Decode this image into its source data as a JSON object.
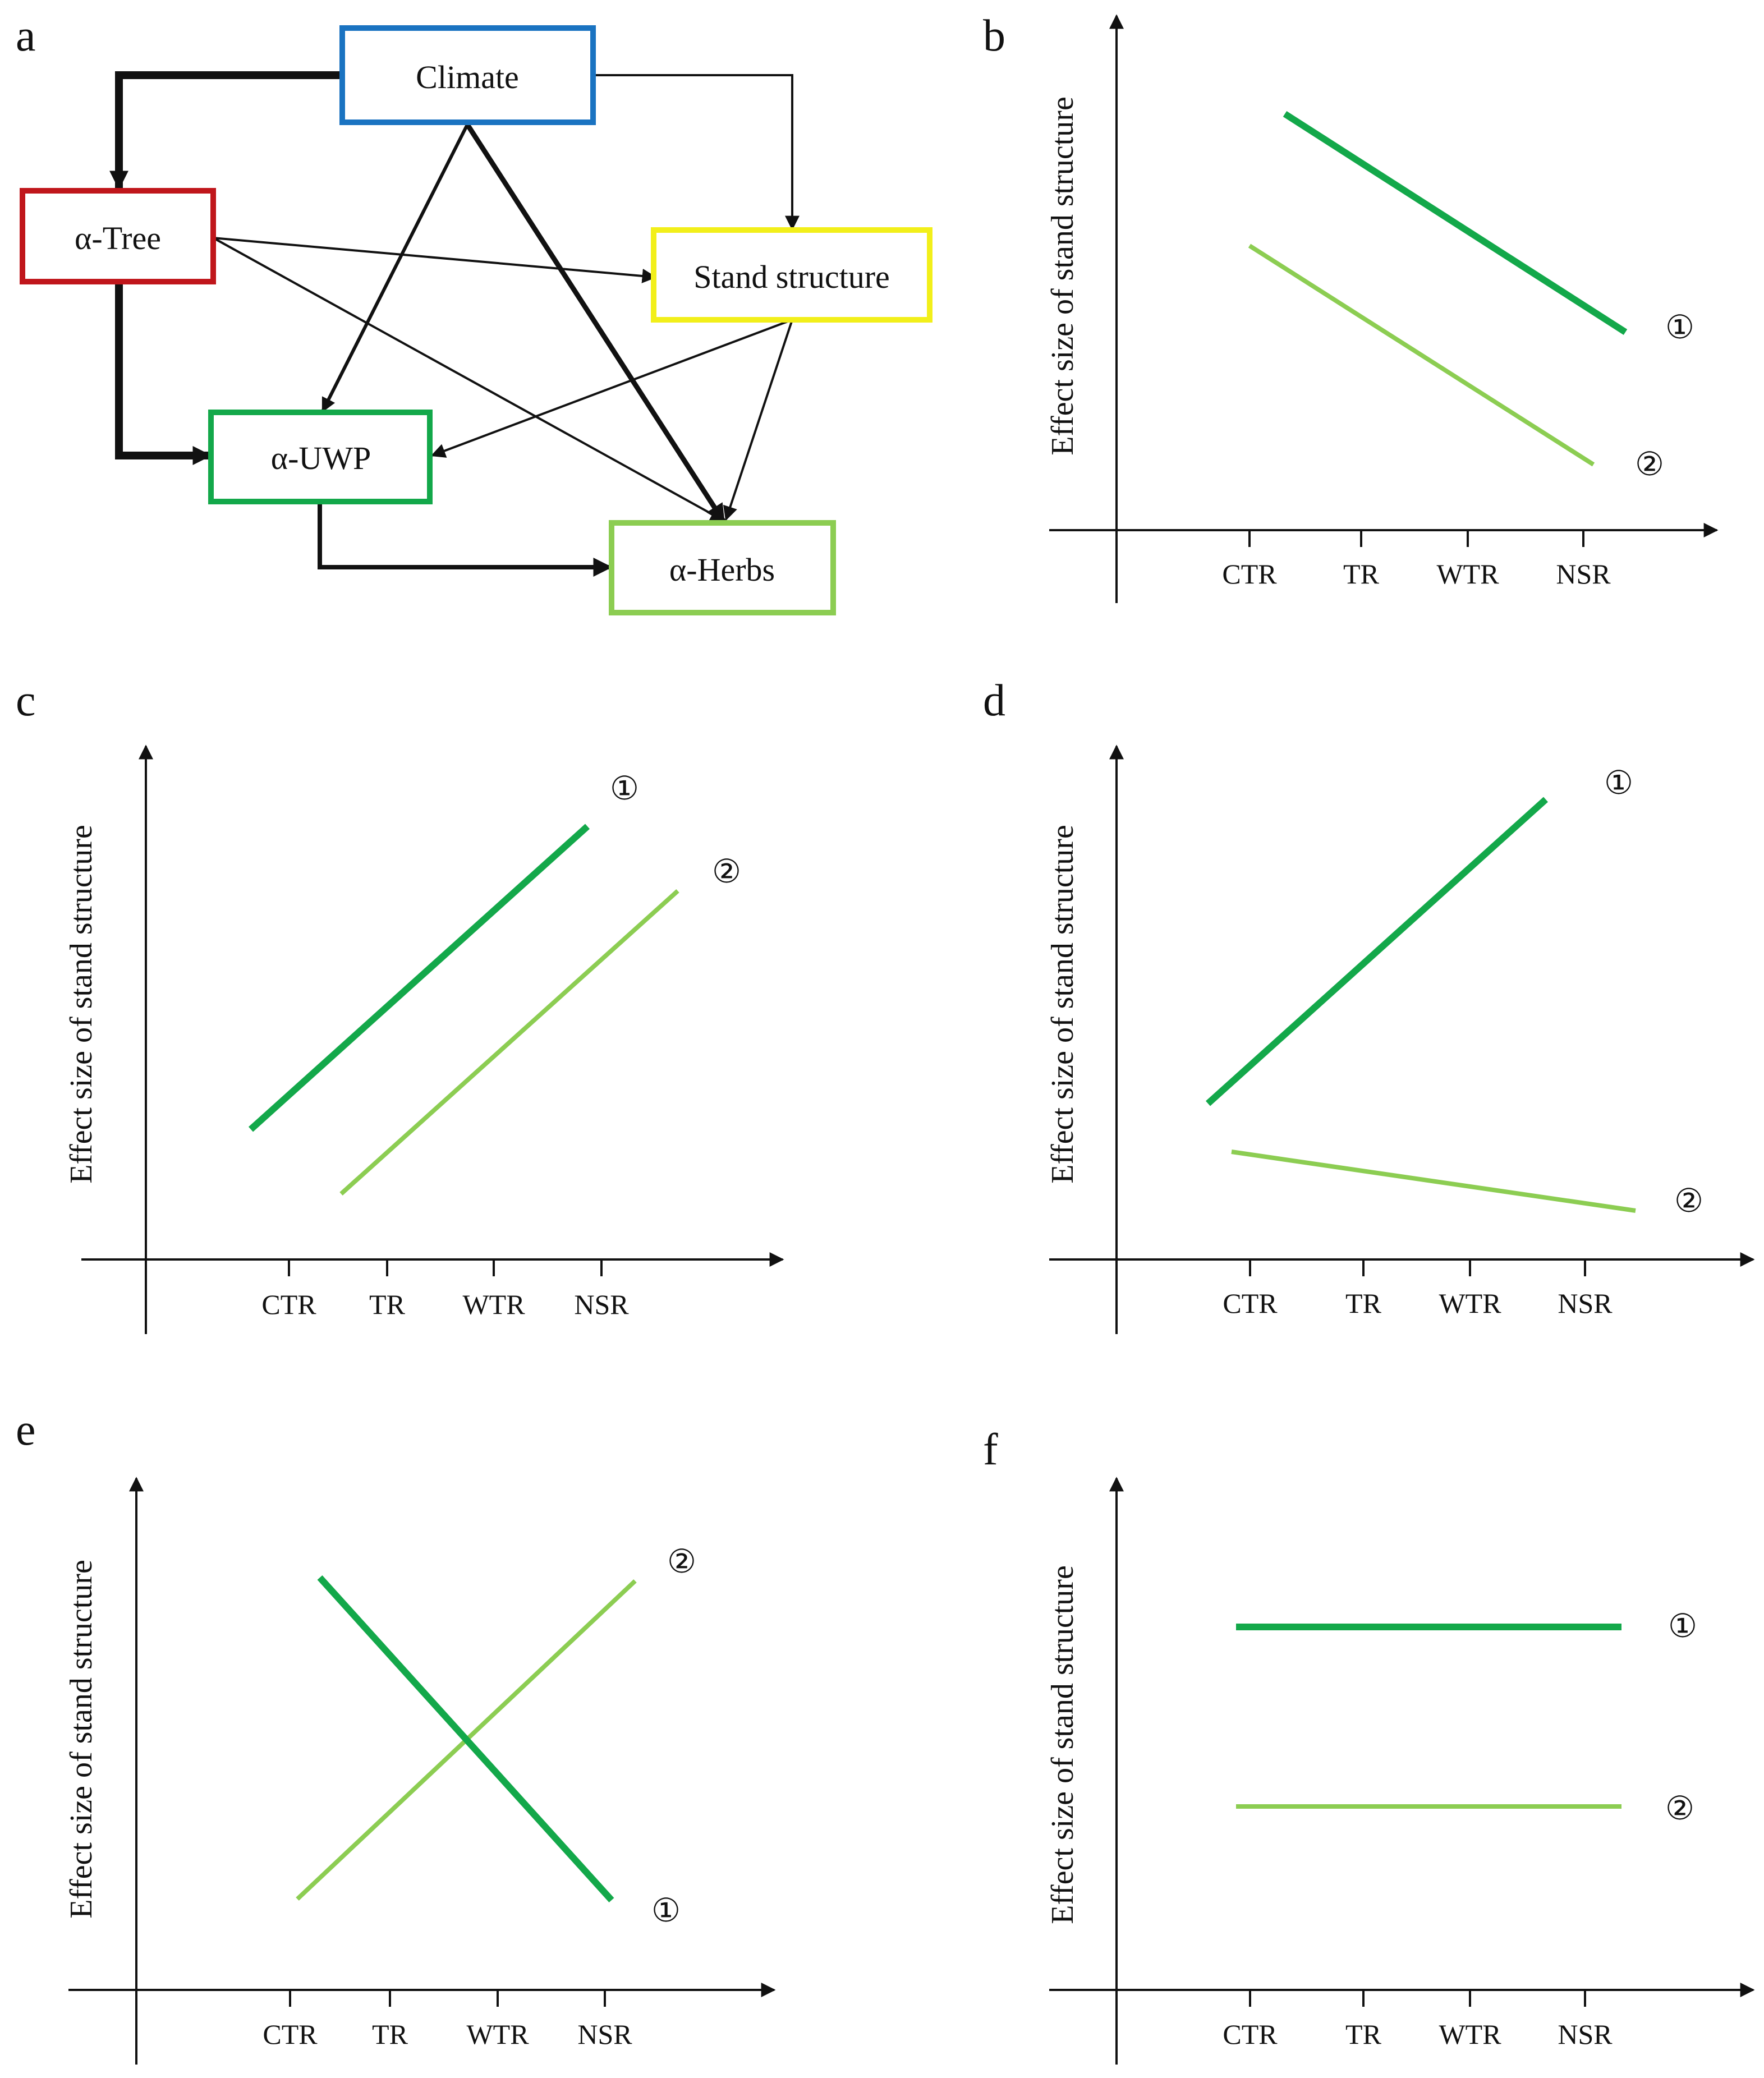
{
  "colors": {
    "climate": "#1a73c1",
    "tree": "#c0161b",
    "stand": "#f2ef1a",
    "uwp": "#13a84a",
    "herbs": "#8ccd52",
    "line1": "#13a84a",
    "line2": "#8ccd52",
    "ink": "#111111"
  },
  "panel_a": {
    "label": "a",
    "nodes": {
      "climate": "Climate",
      "tree": "α-Tree",
      "stand": "Stand structure",
      "uwp": "α-UWP",
      "herbs": "α-Herbs"
    }
  },
  "common": {
    "ylabel": "Effect size of stand structure",
    "ticks": [
      "CTR",
      "TR",
      "WTR",
      "NSR"
    ],
    "line1_marker": "①",
    "line2_marker": "②"
  },
  "panels": [
    {
      "id": "b",
      "label": "b"
    },
    {
      "id": "c",
      "label": "c"
    },
    {
      "id": "d",
      "label": "d"
    },
    {
      "id": "e",
      "label": "e"
    },
    {
      "id": "f",
      "label": "f"
    }
  ]
}
